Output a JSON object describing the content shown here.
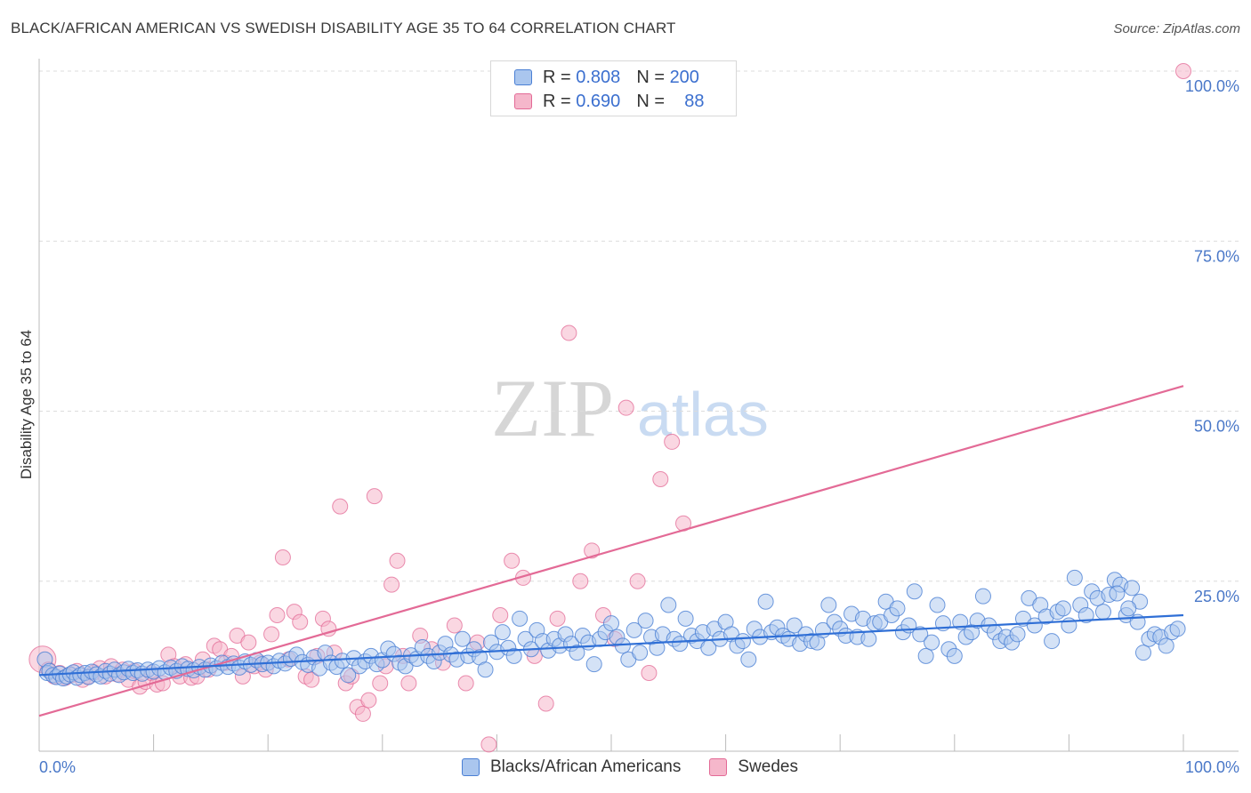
{
  "header": {
    "title": "BLACK/AFRICAN AMERICAN VS SWEDISH DISABILITY AGE 35 TO 64 CORRELATION CHART",
    "source": "Source: ZipAtlas.com"
  },
  "watermark": {
    "zip": "ZIP",
    "atlas": "atlas"
  },
  "legend": {
    "rows": [
      {
        "r_label": "R =",
        "r_value": "0.808",
        "n_label": "N =",
        "n_value": "200"
      },
      {
        "r_label": "R =",
        "r_value": "0.690",
        "n_label": "N =",
        "n_value": "88"
      }
    ]
  },
  "chart_data": {
    "type": "scatter",
    "title": "BLACK/AFRICAN AMERICAN VS SWEDISH DISABILITY AGE 35 TO 64 CORRELATION CHART",
    "xlabel": "",
    "ylabel": "Disability Age 35 to 64",
    "xlim": [
      0,
      100
    ],
    "ylim": [
      0,
      100
    ],
    "x_tick_labels": [
      "0.0%",
      "100.0%"
    ],
    "y_tick_labels": [
      "100.0%",
      "75.0%",
      "50.0%",
      "25.0%"
    ],
    "y_ticks": [
      100,
      75,
      50,
      25
    ],
    "grid": true,
    "legend_position": "top-center and bottom",
    "colors": {
      "blue": "#4a7fd4",
      "blue_fill": "#aac6ee",
      "pink": "#e36a96",
      "pink_fill": "#f5b7cb"
    },
    "series": [
      {
        "name": "Blacks/African Americans",
        "r": 0.808,
        "n": 200,
        "trend": {
          "x": [
            0,
            100
          ],
          "y": [
            11.2,
            20.0
          ]
        },
        "points": [
          [
            0.5,
            13.5
          ],
          [
            0.7,
            11.5
          ],
          [
            0.9,
            11.8
          ],
          [
            1.2,
            11.2
          ],
          [
            1.5,
            10.9
          ],
          [
            1.8,
            11.4
          ],
          [
            2.1,
            10.7
          ],
          [
            2.4,
            11.0
          ],
          [
            2.7,
            11.3
          ],
          [
            3.0,
            11.6
          ],
          [
            3.3,
            10.8
          ],
          [
            3.6,
            11.2
          ],
          [
            4.0,
            11.5
          ],
          [
            4.3,
            10.9
          ],
          [
            4.6,
            11.7
          ],
          [
            5.0,
            11.3
          ],
          [
            5.4,
            11.0
          ],
          [
            5.8,
            11.8
          ],
          [
            6.2,
            11.4
          ],
          [
            6.6,
            12.0
          ],
          [
            7.0,
            11.2
          ],
          [
            7.4,
            11.6
          ],
          [
            7.8,
            12.1
          ],
          [
            8.2,
            11.5
          ],
          [
            8.6,
            11.9
          ],
          [
            9.0,
            11.4
          ],
          [
            9.5,
            12.0
          ],
          [
            10.0,
            11.7
          ],
          [
            10.5,
            12.2
          ],
          [
            11.0,
            11.6
          ],
          [
            11.5,
            12.3
          ],
          [
            12.0,
            11.8
          ],
          [
            12.5,
            12.5
          ],
          [
            13.0,
            12.1
          ],
          [
            13.5,
            11.9
          ],
          [
            14.0,
            12.4
          ],
          [
            14.5,
            12.0
          ],
          [
            15.0,
            12.6
          ],
          [
            15.5,
            12.2
          ],
          [
            16.0,
            13.0
          ],
          [
            16.5,
            12.4
          ],
          [
            17.0,
            12.9
          ],
          [
            17.5,
            12.3
          ],
          [
            18.0,
            13.2
          ],
          [
            18.5,
            12.7
          ],
          [
            19.0,
            13.4
          ],
          [
            19.5,
            12.8
          ],
          [
            20.0,
            13.0
          ],
          [
            20.5,
            12.5
          ],
          [
            21.0,
            13.3
          ],
          [
            21.5,
            12.9
          ],
          [
            22.0,
            13.6
          ],
          [
            22.5,
            14.2
          ],
          [
            23.0,
            13.1
          ],
          [
            23.5,
            12.7
          ],
          [
            24.0,
            13.8
          ],
          [
            24.5,
            12.2
          ],
          [
            25.0,
            14.5
          ],
          [
            25.5,
            13.0
          ],
          [
            26.0,
            12.4
          ],
          [
            26.5,
            13.3
          ],
          [
            27.0,
            11.2
          ],
          [
            27.5,
            13.7
          ],
          [
            28.0,
            12.5
          ],
          [
            28.5,
            13.2
          ],
          [
            29.0,
            14.0
          ],
          [
            29.5,
            12.8
          ],
          [
            30.0,
            13.4
          ],
          [
            30.5,
            15.1
          ],
          [
            31.0,
            14.3
          ],
          [
            31.5,
            13.0
          ],
          [
            32.0,
            12.5
          ],
          [
            32.5,
            14.1
          ],
          [
            33.0,
            13.6
          ],
          [
            33.5,
            15.3
          ],
          [
            34.0,
            14.0
          ],
          [
            34.5,
            13.2
          ],
          [
            35.0,
            14.5
          ],
          [
            35.5,
            15.8
          ],
          [
            36.0,
            14.2
          ],
          [
            36.5,
            13.5
          ],
          [
            37.0,
            16.5
          ],
          [
            37.5,
            14.0
          ],
          [
            38.0,
            15.0
          ],
          [
            38.5,
            13.8
          ],
          [
            39.0,
            12.0
          ],
          [
            39.5,
            16.0
          ],
          [
            40.0,
            14.6
          ],
          [
            40.5,
            17.5
          ],
          [
            41.0,
            15.2
          ],
          [
            41.5,
            14.0
          ],
          [
            42.0,
            19.5
          ],
          [
            42.5,
            16.5
          ],
          [
            43.0,
            15.0
          ],
          [
            43.5,
            17.8
          ],
          [
            44.0,
            16.2
          ],
          [
            44.5,
            14.8
          ],
          [
            45.0,
            16.5
          ],
          [
            45.5,
            15.5
          ],
          [
            46.0,
            17.2
          ],
          [
            46.5,
            15.8
          ],
          [
            47.0,
            14.5
          ],
          [
            47.5,
            17.0
          ],
          [
            48.0,
            16.0
          ],
          [
            48.5,
            12.8
          ],
          [
            49.0,
            16.5
          ],
          [
            49.5,
            17.5
          ],
          [
            50.0,
            18.8
          ],
          [
            50.5,
            16.8
          ],
          [
            51.0,
            15.5
          ],
          [
            51.5,
            13.5
          ],
          [
            52.0,
            17.8
          ],
          [
            52.5,
            14.5
          ],
          [
            53.0,
            19.2
          ],
          [
            53.5,
            16.8
          ],
          [
            54.0,
            15.2
          ],
          [
            54.5,
            17.2
          ],
          [
            55.0,
            21.5
          ],
          [
            55.5,
            16.5
          ],
          [
            56.0,
            15.8
          ],
          [
            56.5,
            19.5
          ],
          [
            57.0,
            17.0
          ],
          [
            57.5,
            16.2
          ],
          [
            58.0,
            17.5
          ],
          [
            58.5,
            15.2
          ],
          [
            59.0,
            18.0
          ],
          [
            59.5,
            16.5
          ],
          [
            60.0,
            19.0
          ],
          [
            60.5,
            17.2
          ],
          [
            61.0,
            15.5
          ],
          [
            61.5,
            16.2
          ],
          [
            62.0,
            13.5
          ],
          [
            62.5,
            18.0
          ],
          [
            63.0,
            16.8
          ],
          [
            63.5,
            22.0
          ],
          [
            64.0,
            17.5
          ],
          [
            64.5,
            18.2
          ],
          [
            65.0,
            17.0
          ],
          [
            65.5,
            16.5
          ],
          [
            66.0,
            18.5
          ],
          [
            66.5,
            15.8
          ],
          [
            67.0,
            17.2
          ],
          [
            67.5,
            16.2
          ],
          [
            68.0,
            16.0
          ],
          [
            68.5,
            17.8
          ],
          [
            69.0,
            21.5
          ],
          [
            69.5,
            19.0
          ],
          [
            70.0,
            18.0
          ],
          [
            70.5,
            17.0
          ],
          [
            71.0,
            20.2
          ],
          [
            71.5,
            16.8
          ],
          [
            72.0,
            19.5
          ],
          [
            72.5,
            16.5
          ],
          [
            73.0,
            18.8
          ],
          [
            73.5,
            19.0
          ],
          [
            74.0,
            22.0
          ],
          [
            74.5,
            20.0
          ],
          [
            75.0,
            21.0
          ],
          [
            75.5,
            17.5
          ],
          [
            76.0,
            18.5
          ],
          [
            76.5,
            23.5
          ],
          [
            77.0,
            17.2
          ],
          [
            77.5,
            14.0
          ],
          [
            78.0,
            16.0
          ],
          [
            78.5,
            21.5
          ],
          [
            79.0,
            18.8
          ],
          [
            79.5,
            15.0
          ],
          [
            80.0,
            14.0
          ],
          [
            80.5,
            19.0
          ],
          [
            81.0,
            16.8
          ],
          [
            81.5,
            17.5
          ],
          [
            82.0,
            19.2
          ],
          [
            82.5,
            22.8
          ],
          [
            83.0,
            18.5
          ],
          [
            83.5,
            17.5
          ],
          [
            84.0,
            16.2
          ],
          [
            84.5,
            16.8
          ],
          [
            85.0,
            16.0
          ],
          [
            85.5,
            17.2
          ],
          [
            86.0,
            19.5
          ],
          [
            86.5,
            22.5
          ],
          [
            87.0,
            18.5
          ],
          [
            87.5,
            21.5
          ],
          [
            88.0,
            19.8
          ],
          [
            88.5,
            16.2
          ],
          [
            89.0,
            20.5
          ],
          [
            89.5,
            21.0
          ],
          [
            90.0,
            18.5
          ],
          [
            90.5,
            25.5
          ],
          [
            91.0,
            21.5
          ],
          [
            91.5,
            20.0
          ],
          [
            92.0,
            23.5
          ],
          [
            92.5,
            22.5
          ],
          [
            93.0,
            20.5
          ],
          [
            93.5,
            23.0
          ],
          [
            94.0,
            25.2
          ],
          [
            94.5,
            24.5
          ],
          [
            95.0,
            20.0
          ],
          [
            95.5,
            24.0
          ],
          [
            96.0,
            19.0
          ],
          [
            96.5,
            14.5
          ],
          [
            97.0,
            16.5
          ],
          [
            97.5,
            17.2
          ],
          [
            98.0,
            16.8
          ],
          [
            98.5,
            15.5
          ],
          [
            99.0,
            17.5
          ],
          [
            99.5,
            18.0
          ],
          [
            96.2,
            22.0
          ],
          [
            95.2,
            21.0
          ],
          [
            94.2,
            23.2
          ]
        ]
      },
      {
        "name": "Swedes",
        "r": 0.69,
        "n": 88,
        "trend": {
          "x": [
            0,
            100
          ],
          "y": [
            5.2,
            53.7
          ]
        },
        "points": [
          [
            0.3,
            13.5
          ],
          [
            0.8,
            12.0
          ],
          [
            1.3,
            11.0
          ],
          [
            1.8,
            11.5
          ],
          [
            2.3,
            10.8
          ],
          [
            2.8,
            11.2
          ],
          [
            3.3,
            11.8
          ],
          [
            3.8,
            10.5
          ],
          [
            4.3,
            11.0
          ],
          [
            4.8,
            11.6
          ],
          [
            5.3,
            12.2
          ],
          [
            5.8,
            11.0
          ],
          [
            6.3,
            12.5
          ],
          [
            6.8,
            11.3
          ],
          [
            7.3,
            12.0
          ],
          [
            7.8,
            10.5
          ],
          [
            8.3,
            11.8
          ],
          [
            8.8,
            9.5
          ],
          [
            9.3,
            10.2
          ],
          [
            9.8,
            11.5
          ],
          [
            10.3,
            9.8
          ],
          [
            10.8,
            10.0
          ],
          [
            11.3,
            14.2
          ],
          [
            11.8,
            12.5
          ],
          [
            12.3,
            11.0
          ],
          [
            12.8,
            12.8
          ],
          [
            13.3,
            10.8
          ],
          [
            13.8,
            11.0
          ],
          [
            14.3,
            13.5
          ],
          [
            14.8,
            12.0
          ],
          [
            15.3,
            15.5
          ],
          [
            15.8,
            15.0
          ],
          [
            16.3,
            13.0
          ],
          [
            16.8,
            14.0
          ],
          [
            17.3,
            17.0
          ],
          [
            17.8,
            11.0
          ],
          [
            18.3,
            16.0
          ],
          [
            18.8,
            12.5
          ],
          [
            19.3,
            13.0
          ],
          [
            19.8,
            12.0
          ],
          [
            20.3,
            17.2
          ],
          [
            20.8,
            20.0
          ],
          [
            21.3,
            28.5
          ],
          [
            21.8,
            13.5
          ],
          [
            22.3,
            20.5
          ],
          [
            22.8,
            19.0
          ],
          [
            23.3,
            11.0
          ],
          [
            23.8,
            10.5
          ],
          [
            24.3,
            14.0
          ],
          [
            24.8,
            19.5
          ],
          [
            25.3,
            18.0
          ],
          [
            25.8,
            14.5
          ],
          [
            26.3,
            36.0
          ],
          [
            26.8,
            10.0
          ],
          [
            27.3,
            11.0
          ],
          [
            27.8,
            6.5
          ],
          [
            28.3,
            5.5
          ],
          [
            28.8,
            7.5
          ],
          [
            29.3,
            37.5
          ],
          [
            29.8,
            10.0
          ],
          [
            30.3,
            12.5
          ],
          [
            30.8,
            24.5
          ],
          [
            31.3,
            28.0
          ],
          [
            31.8,
            14.0
          ],
          [
            32.3,
            10.0
          ],
          [
            33.3,
            17.0
          ],
          [
            34.3,
            15.0
          ],
          [
            35.3,
            13.0
          ],
          [
            36.3,
            18.5
          ],
          [
            37.3,
            10.0
          ],
          [
            38.3,
            16.0
          ],
          [
            39.3,
            1.0
          ],
          [
            40.3,
            20.0
          ],
          [
            41.3,
            28.0
          ],
          [
            42.3,
            25.5
          ],
          [
            43.3,
            14.0
          ],
          [
            44.3,
            7.0
          ],
          [
            45.3,
            19.5
          ],
          [
            46.3,
            61.5
          ],
          [
            47.3,
            25.0
          ],
          [
            48.3,
            29.5
          ],
          [
            49.3,
            20.0
          ],
          [
            50.3,
            16.5
          ],
          [
            51.3,
            50.5
          ],
          [
            52.3,
            25.0
          ],
          [
            53.3,
            11.5
          ],
          [
            54.3,
            40.0
          ],
          [
            55.3,
            45.5
          ],
          [
            56.3,
            33.5
          ],
          [
            100.0,
            100.0
          ]
        ]
      }
    ]
  },
  "bottom_legend": {
    "items": [
      {
        "label": "Blacks/African Americans"
      },
      {
        "label": "Swedes"
      }
    ]
  }
}
